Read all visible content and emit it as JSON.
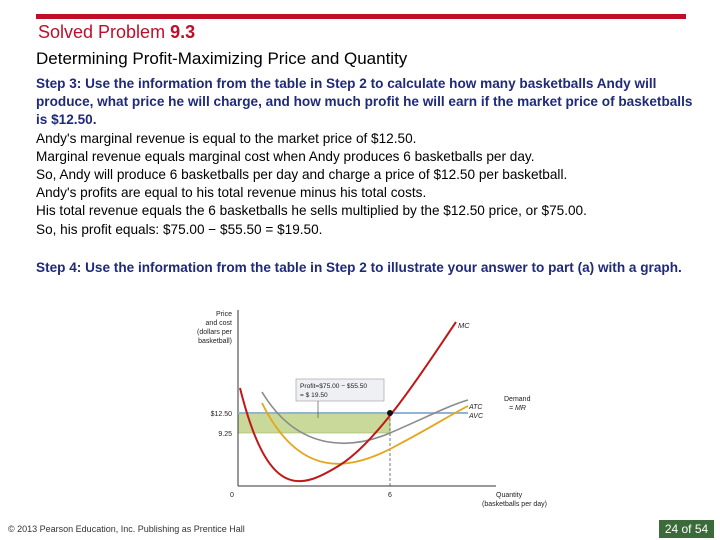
{
  "header": {
    "title_prefix": "Solved Problem",
    "title_number": "9.3",
    "subtitle": "Determining Profit-Maximizing Price and Quantity"
  },
  "step3": {
    "heading": "Step 3:  Use the information from the table in Step 2 to calculate how many basketballs Andy will produce, what price he will charge, and how much profit he will earn if the market price of basketballs is $12.50.",
    "lines": [
      "Andy's marginal revenue is equal to the market price of $12.50.",
      "Marginal revenue equals marginal cost when Andy produces 6 basketballs per day.",
      "So, Andy will produce 6 basketballs per day and charge a price of $12.50 per basketball.",
      "Andy's profits are equal to his total revenue minus his total costs.",
      "His total revenue equals the 6 basketballs he sells multiplied by the $12.50 price, or $75.00.",
      "So, his profit equals: $75.00 − $55.50 = $19.50."
    ]
  },
  "step4": {
    "heading": "Step 4:  Use the information from the table in Step 2 to illustrate your answer to part (a) with a graph."
  },
  "graph": {
    "ylabel_lines": [
      "Price",
      "and cost",
      "(dollars per",
      "basketball)"
    ],
    "xlabel_lines": [
      "Quantity",
      "(basketballs per day)"
    ],
    "price_label": "$12.50",
    "atc_label": "9.25",
    "origin_label": "0",
    "q_label": "6",
    "mc_label": "MC",
    "atc_curve_label": "ATC",
    "avc_curve_label": "AVC",
    "demand_label_lines": [
      "Demand",
      "= MR"
    ],
    "callout_lines": [
      "Profit=$75.00 − $55.50",
      "= $ 19.50"
    ],
    "colors": {
      "mc": "#c01818",
      "atc": "#8a8a8a",
      "avc": "#e4a51c",
      "demand": "#8fb6d8",
      "profit": "#c9d99a"
    }
  },
  "footer": {
    "copyright": "© 2013 Pearson Education, Inc. Publishing as Prentice Hall",
    "page": "24 of 54"
  }
}
